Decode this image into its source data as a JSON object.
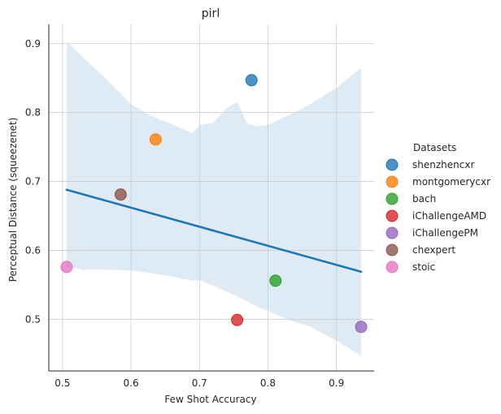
{
  "chart_data": {
    "type": "scatter",
    "title": "pirl",
    "xlabel": "Few Shot Accuracy",
    "ylabel": "Perceptual Distance (squeezenet)",
    "xlim": [
      0.48,
      0.955
    ],
    "ylim": [
      0.425,
      0.928
    ],
    "xticks": [
      "0.5",
      "0.6",
      "0.7",
      "0.8",
      "0.9"
    ],
    "yticks": [
      "0.5",
      "0.6",
      "0.7",
      "0.8",
      "0.9"
    ],
    "grid": true,
    "legend_title": "Datasets",
    "legend_placement": "right",
    "series": [
      {
        "name": "shenzhencxr",
        "color": "#1f77b4",
        "x": 0.776,
        "y": 0.847
      },
      {
        "name": "montgomerycxr",
        "color": "#ff7f0e",
        "x": 0.636,
        "y": 0.761
      },
      {
        "name": "bach",
        "color": "#2ca02c",
        "x": 0.811,
        "y": 0.556
      },
      {
        "name": "iChallengeAMD",
        "color": "#d62728",
        "x": 0.755,
        "y": 0.499
      },
      {
        "name": "iChallengePM",
        "color": "#9467bd",
        "x": 0.936,
        "y": 0.489
      },
      {
        "name": "chexpert",
        "color": "#8c564b",
        "x": 0.585,
        "y": 0.681
      },
      {
        "name": "stoic",
        "color": "#e377c2",
        "x": 0.506,
        "y": 0.576
      }
    ],
    "regression": {
      "color": "#1f77b4",
      "x": [
        0.506,
        0.936
      ],
      "y": [
        0.688,
        0.569
      ]
    },
    "confidence_band": {
      "color": "#1f77b4",
      "x": [
        0.506,
        0.53,
        0.56,
        0.6,
        0.63,
        0.66,
        0.69,
        0.7,
        0.72,
        0.74,
        0.755,
        0.77,
        0.785,
        0.8,
        0.83,
        0.86,
        0.9,
        0.936
      ],
      "upper": [
        0.903,
        0.88,
        0.852,
        0.812,
        0.795,
        0.783,
        0.77,
        0.782,
        0.785,
        0.807,
        0.815,
        0.784,
        0.78,
        0.782,
        0.796,
        0.811,
        0.836,
        0.865
      ],
      "lower": [
        0.576,
        0.572,
        0.572,
        0.571,
        0.567,
        0.562,
        0.556,
        0.557,
        0.549,
        0.54,
        0.533,
        0.526,
        0.518,
        0.512,
        0.499,
        0.49,
        0.469,
        0.447
      ]
    }
  }
}
